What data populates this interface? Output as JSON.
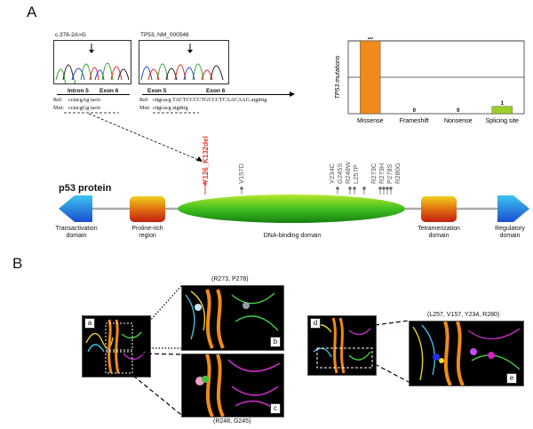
{
  "panels": {
    "a": "A",
    "b": "B"
  },
  "chromatograms": {
    "left_title": "c.376-2A>G",
    "right_title": "TP53, NM_000546",
    "intron5": "Intron 5",
    "exon6_left": "Exon 6",
    "exon5_right": "Exon 5",
    "exon6_right": "Exon 6",
    "left_ref_label": "Ref:",
    "left_ref_seq": "cctacgAg  tactc",
    "left_mut_label": "Mut:",
    "left_mut_seq": "cctacgGg  tactc",
    "right_ref_label": "Ref:",
    "right_ref_seq": "cttgcacg   TACTCCCCTGCCCTCAACAAG   atgttttg",
    "right_mut_label": "Mut:",
    "right_mut_seq": "cttgcacg                                  atgttttg"
  },
  "chart_data": {
    "type": "bar",
    "categories": [
      "Missense",
      "Frameshift",
      "Nonsense",
      "Splicing site"
    ],
    "values": [
      10,
      0,
      0,
      1
    ],
    "ylabel": "TP53 mutations",
    "ylim": [
      0,
      10
    ],
    "gridlines": [
      5,
      10
    ],
    "colors": [
      "#f08a1a",
      "#f08a1a",
      "#f08a1a",
      "#9ccf2b"
    ],
    "value_labels": [
      "10",
      "0",
      "0",
      "1"
    ]
  },
  "protein": {
    "title": "p53 protein",
    "deletion": "Y126_K132del",
    "mutations": [
      "V157D",
      "Y234C",
      "G245S",
      "R248W",
      "L257P",
      "R273C",
      "R273H",
      "P278S",
      "R280G"
    ],
    "domains": {
      "transactivation": "Transactivation domain",
      "proline": "Proline-rich region",
      "dna_binding": "DNA-binding domain",
      "tetramerization": "Tetramerization domain",
      "regulatory": "Regulatory domain"
    },
    "colors": {
      "deletion": "#e8392a",
      "mutation": "#666666"
    }
  },
  "structures": {
    "b_caption": "(R273, P278)",
    "c_caption": "(R248, G245)",
    "e_caption": "(L257, V157, Y234, R280)",
    "tags": [
      "a",
      "b",
      "c",
      "d",
      "e"
    ]
  }
}
